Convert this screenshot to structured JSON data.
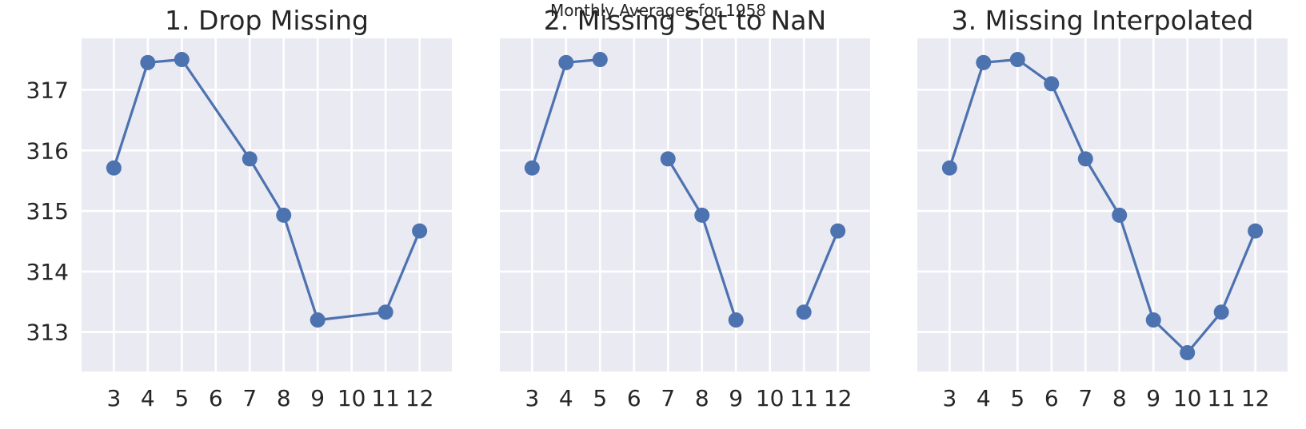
{
  "figure": {
    "suptitle": "Monthly Averages for 1958"
  },
  "style": {
    "background": "#ffffff",
    "axes_face": "#eaeaf2",
    "grid": "#ffffff",
    "line_color": "#4c72b0",
    "text_color": "#262626"
  },
  "chart_data": [
    {
      "type": "line",
      "title": "1. Drop Missing",
      "xlabel": "",
      "ylabel": "",
      "x": [
        3,
        4,
        5,
        7,
        8,
        9,
        11,
        12
      ],
      "y": [
        315.71,
        317.45,
        317.5,
        315.86,
        314.93,
        313.2,
        313.33,
        314.67
      ],
      "xticks": [
        "3",
        "4",
        "5",
        "6",
        "7",
        "8",
        "9",
        "10",
        "11",
        "12"
      ],
      "yticks": [
        "313",
        "314",
        "315",
        "316",
        "317"
      ],
      "xlim": [
        2.05,
        12.95
      ],
      "ylim": [
        312.35,
        317.85
      ],
      "grid": true,
      "marker": "circle"
    },
    {
      "type": "line",
      "title": "2. Missing Set to NaN",
      "xlabel": "",
      "ylabel": "",
      "x": [
        3,
        4,
        5,
        6,
        7,
        8,
        9,
        10,
        11,
        12
      ],
      "y": [
        315.71,
        317.45,
        317.5,
        null,
        315.86,
        314.93,
        313.2,
        null,
        313.33,
        314.67
      ],
      "xticks": [
        "3",
        "4",
        "5",
        "6",
        "7",
        "8",
        "9",
        "10",
        "11",
        "12"
      ],
      "yticks": [
        "313",
        "314",
        "315",
        "316",
        "317"
      ],
      "xlim": [
        2.05,
        12.95
      ],
      "ylim": [
        312.35,
        317.85
      ],
      "grid": true,
      "marker": "circle"
    },
    {
      "type": "line",
      "title": "3. Missing Interpolated",
      "xlabel": "",
      "ylabel": "",
      "x": [
        3,
        4,
        5,
        6,
        7,
        8,
        9,
        10,
        11,
        12
      ],
      "y": [
        315.71,
        317.45,
        317.5,
        317.1,
        315.86,
        314.93,
        313.2,
        312.66,
        313.33,
        314.67
      ],
      "xticks": [
        "3",
        "4",
        "5",
        "6",
        "7",
        "8",
        "9",
        "10",
        "11",
        "12"
      ],
      "yticks": [
        "313",
        "314",
        "315",
        "316",
        "317"
      ],
      "xlim": [
        2.05,
        12.95
      ],
      "ylim": [
        312.35,
        317.85
      ],
      "grid": true,
      "marker": "circle"
    }
  ]
}
